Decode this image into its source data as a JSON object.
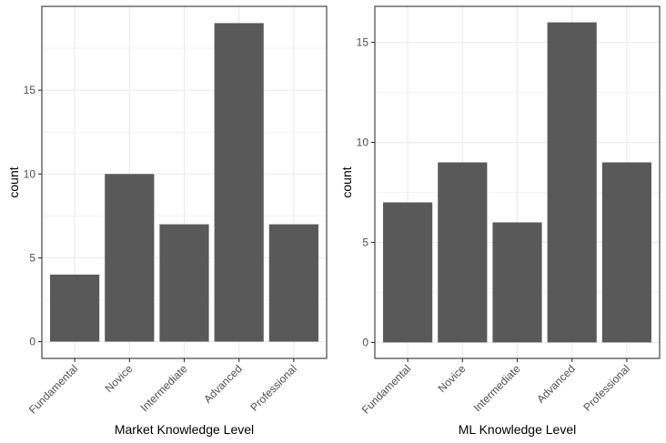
{
  "chart_data": [
    {
      "type": "bar",
      "categories": [
        "Fundamental",
        "Novice",
        "Intermediate",
        "Advanced",
        "Professional"
      ],
      "values": [
        4,
        10,
        7,
        19,
        7
      ],
      "xlabel": "Market Knowledge Level",
      "ylabel": "count",
      "ylim": [
        -1.0,
        20.0
      ],
      "yticks": [
        0,
        5,
        10,
        15
      ],
      "ytick_labels": [
        "0",
        "5",
        "10",
        "15"
      ],
      "grid": true,
      "bar_color": "#595959",
      "grid_color": "#ebebeb",
      "panel_border_color": "#333333",
      "tick_label_color": "#4d4d4d"
    },
    {
      "type": "bar",
      "categories": [
        "Fundamental",
        "Novice",
        "Intermediate",
        "Advanced",
        "Professional"
      ],
      "values": [
        7,
        9,
        6,
        16,
        9
      ],
      "xlabel": "ML Knowledge Level",
      "ylabel": "count",
      "ylim": [
        -0.8,
        16.8
      ],
      "yticks": [
        0,
        5,
        10,
        15
      ],
      "ytick_labels": [
        "0",
        "5",
        "10",
        "15"
      ],
      "grid": true,
      "bar_color": "#595959",
      "grid_color": "#ebebeb",
      "panel_border_color": "#333333",
      "tick_label_color": "#4d4d4d"
    }
  ]
}
